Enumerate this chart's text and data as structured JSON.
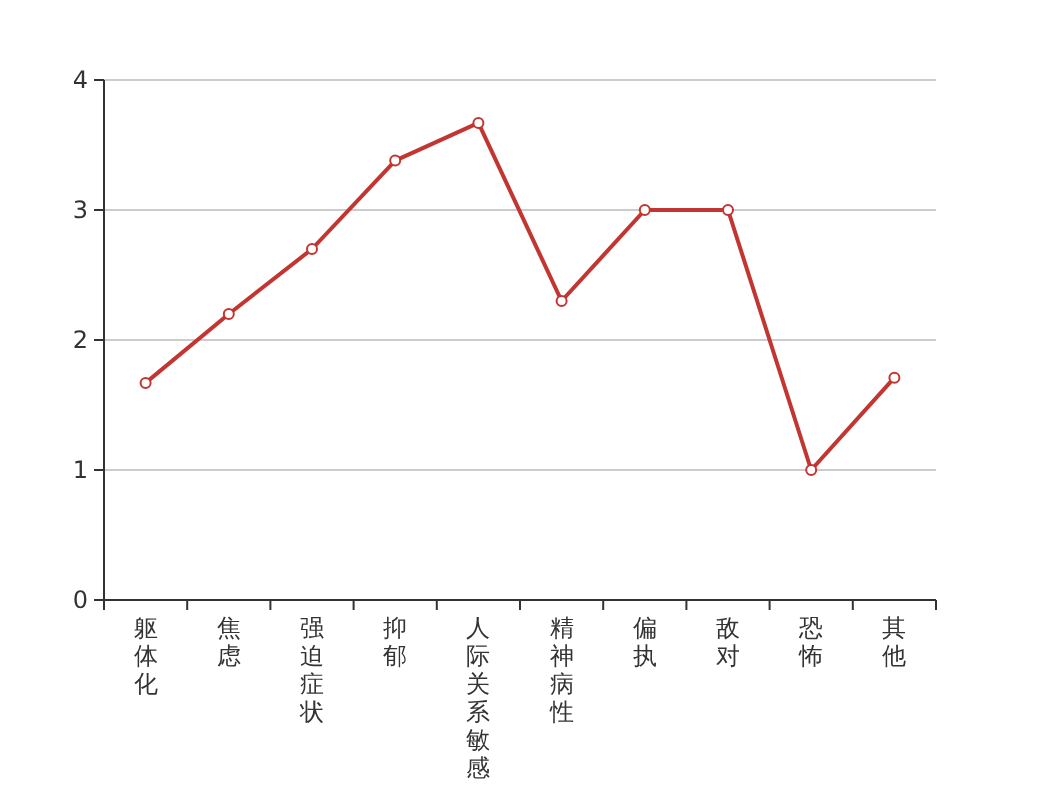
{
  "chart_data": {
    "type": "line",
    "categories": [
      "躯体化",
      "焦虑",
      "强迫症状",
      "抑郁",
      "人际关系敏感",
      "精神病性",
      "偏执",
      "敌对",
      "恐怖",
      "其他"
    ],
    "series": [
      {
        "color": "#c23531",
        "values": [
          1.67,
          2.2,
          2.7,
          3.38,
          3.67,
          2.3,
          3.0,
          3.0,
          1.0,
          1.71
        ]
      }
    ],
    "ylim": [
      0,
      4
    ],
    "yticks": [
      0,
      1,
      2,
      3,
      4
    ],
    "grid": "y",
    "marker": "circle",
    "line_style": "solid"
  }
}
